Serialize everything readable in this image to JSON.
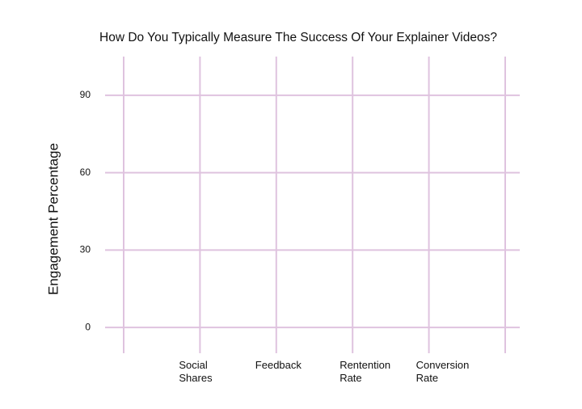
{
  "chart_data": {
    "type": "bar",
    "title": "How Do You Typically Measure The Success Of Your Explainer Videos?",
    "y_label": "Engagement Percentage",
    "categories": [
      "Social Shares",
      "Feedback",
      "Rentention Rate",
      "Conversion Rate"
    ],
    "ylim": [
      -10,
      105
    ],
    "yticks": [
      0,
      30,
      60,
      90
    ],
    "grid": true,
    "grid_color": "#dfc3df"
  }
}
